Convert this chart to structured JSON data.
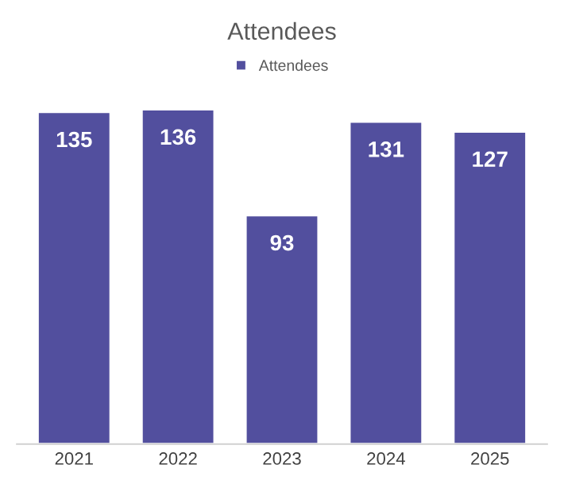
{
  "chart_data": {
    "type": "bar",
    "title": "Attendees",
    "categories": [
      "2021",
      "2022",
      "2023",
      "2024",
      "2025"
    ],
    "series": [
      {
        "name": "Attendees",
        "color": "#524f9e",
        "values": [
          135,
          136,
          93,
          131,
          127
        ]
      }
    ],
    "data_labels": true,
    "legend": "top",
    "grid": false
  }
}
